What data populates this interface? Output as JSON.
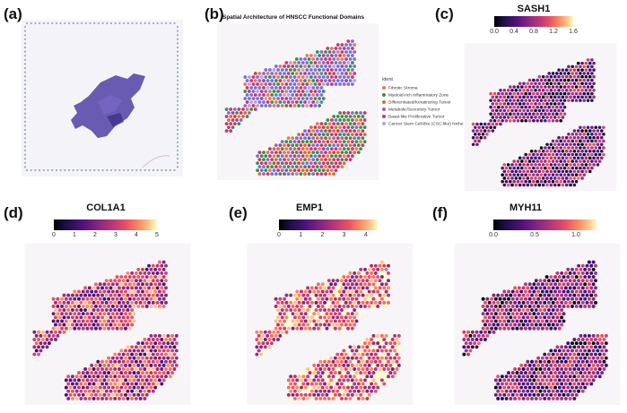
{
  "panels": {
    "a": {
      "label": "(a)"
    },
    "b": {
      "label": "(b)",
      "title": "Spatial Architecture of HNSCC Functional Domains",
      "legend_title": "ident",
      "legend": [
        {
          "name": "Fibrotic Stroma",
          "color": "#e8785a"
        },
        {
          "name": "Myeloid-rich Inflammatory Zone",
          "color": "#3a8f4a"
        },
        {
          "name": "Differentiated/Keratinizing Tumor",
          "color": "#e06a2c"
        },
        {
          "name": "Metabolic/Secretory Tumor",
          "color": "#7a6fd6"
        },
        {
          "name": "Basal-like Proliferative Tumor",
          "color": "#c33b6a"
        },
        {
          "name": "Cancer Stem Cell-like (CSC-like) Niche",
          "color": "#bba0d8"
        }
      ]
    },
    "c": {
      "label": "(c)",
      "gene": "SASH1",
      "ticks": [
        "0.0",
        "0.4",
        "0.8",
        "1.2",
        "1.6"
      ]
    },
    "d": {
      "label": "(d)",
      "gene": "COL1A1",
      "ticks": [
        "0",
        "1",
        "2",
        "3",
        "4",
        "5"
      ]
    },
    "e": {
      "label": "(e)",
      "gene": "EMP1",
      "ticks": [
        "0",
        "1",
        "2",
        "3",
        "4"
      ]
    },
    "f": {
      "label": "(f)",
      "gene": "MYH11",
      "ticks": [
        "0.0",
        "0.5",
        "1.0"
      ]
    }
  },
  "colors": {
    "he_tissue": "#4a3a9a",
    "spot_dark": "#1a0a3a",
    "spot_mid": "#6a2a8a",
    "spot_hot": "#e8705a",
    "fiducial": "#9aaabf"
  }
}
